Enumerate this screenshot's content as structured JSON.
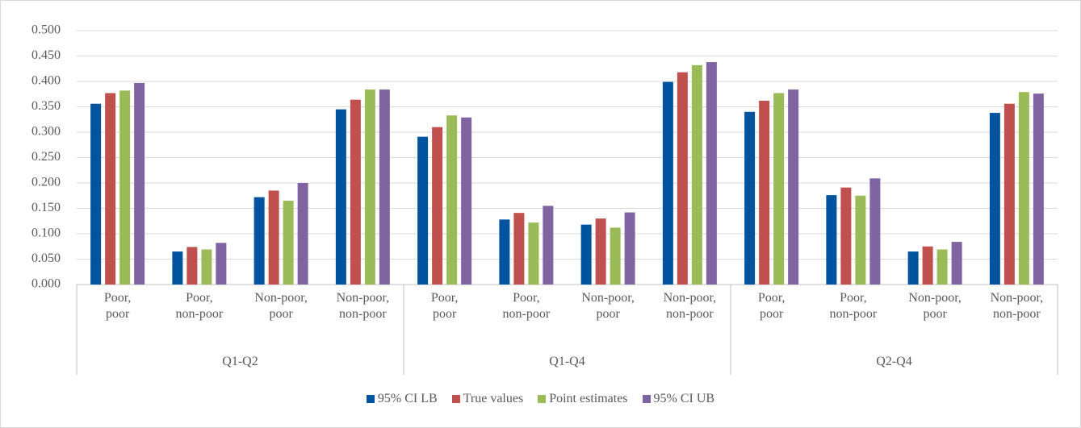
{
  "chart_data": {
    "type": "bar",
    "categories": [
      "Poor,\npoor",
      "Poor,\nnon-poor",
      "Non-poor,\npoor",
      "Non-poor,\nnon-poor",
      "Poor,\npoor",
      "Poor,\nnon-poor",
      "Non-poor,\npoor",
      "Non-poor,\nnon-poor",
      "Poor,\npoor",
      "Poor,\nnon-poor",
      "Non-poor,\npoor",
      "Non-poor,\nnon-poor"
    ],
    "groups": [
      "Q1-Q2",
      "Q1-Q4",
      "Q2-Q4"
    ],
    "series": [
      {
        "name": "95% CI LB",
        "color": "#00539f",
        "values": [
          0.356,
          0.065,
          0.172,
          0.345,
          0.291,
          0.128,
          0.118,
          0.399,
          0.34,
          0.176,
          0.065,
          0.338
        ]
      },
      {
        "name": "True values",
        "color": "#c0504d",
        "values": [
          0.377,
          0.074,
          0.185,
          0.364,
          0.31,
          0.141,
          0.13,
          0.418,
          0.362,
          0.191,
          0.075,
          0.356
        ]
      },
      {
        "name": "Point estimates",
        "color": "#9bbb59",
        "values": [
          0.382,
          0.069,
          0.165,
          0.384,
          0.333,
          0.122,
          0.112,
          0.432,
          0.377,
          0.175,
          0.069,
          0.379
        ]
      },
      {
        "name": "95% CI UB",
        "color": "#8064a2",
        "values": [
          0.397,
          0.082,
          0.2,
          0.384,
          0.329,
          0.155,
          0.142,
          0.438,
          0.384,
          0.209,
          0.084,
          0.376
        ]
      }
    ],
    "ylim": [
      0,
      0.5
    ],
    "yticks": [
      {
        "value": 0,
        "label": "0.000"
      },
      {
        "value": 0.05,
        "label": "0.050"
      },
      {
        "value": 0.1,
        "label": "0.100"
      },
      {
        "value": 0.15,
        "label": "0.150"
      },
      {
        "value": 0.2,
        "label": "0.200"
      },
      {
        "value": 0.25,
        "label": "0.250"
      },
      {
        "value": 0.3,
        "label": "0.300"
      },
      {
        "value": 0.35,
        "label": "0.350"
      },
      {
        "value": 0.4,
        "label": "0.400"
      },
      {
        "value": 0.45,
        "label": "0.450"
      },
      {
        "value": 0.5,
        "label": "0.500"
      }
    ],
    "grid": true,
    "legend": "bottom"
  }
}
